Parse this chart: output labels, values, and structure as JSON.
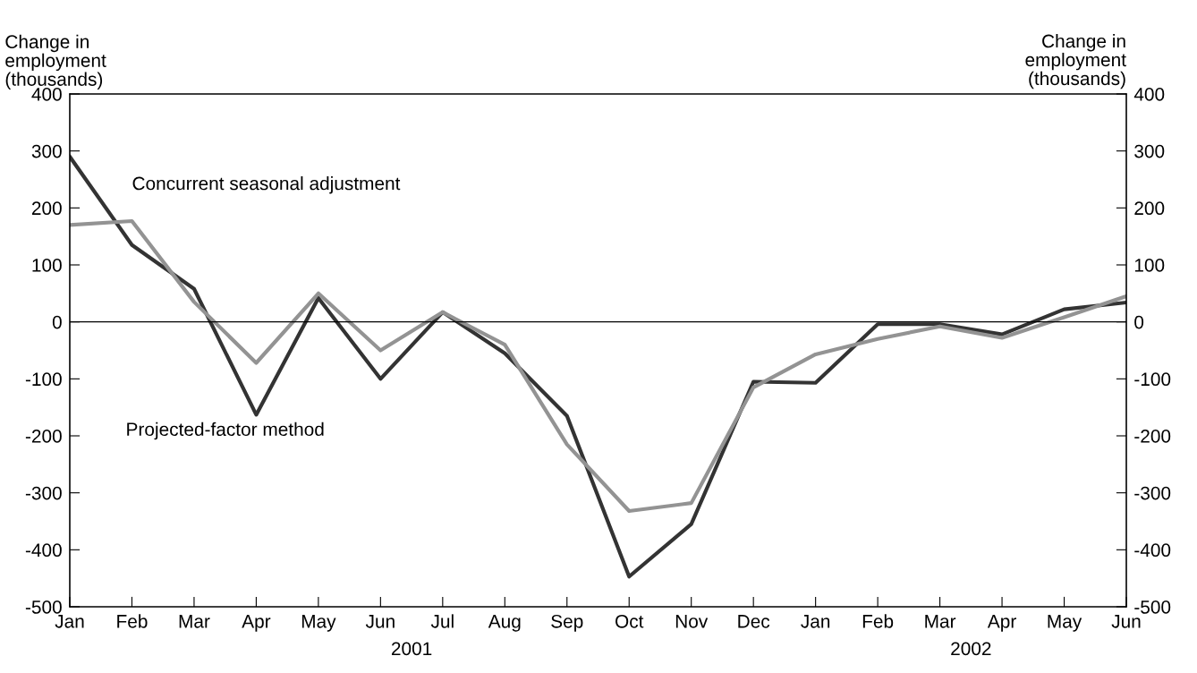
{
  "chart_data": {
    "type": "line",
    "ylabel": "Change in\nemployment\n(thousands)",
    "y2label": "Change in\nemployment\n(thousands)",
    "categories": [
      "Jan",
      "Feb",
      "Mar",
      "Apr",
      "May",
      "Jun",
      "Jul",
      "Aug",
      "Sep",
      "Oct",
      "Nov",
      "Dec",
      "Jan",
      "Feb",
      "Mar",
      "Apr",
      "May",
      "Jun"
    ],
    "series": [
      {
        "name": "Projected-factor method",
        "color": "#333333",
        "values": [
          290,
          135,
          58,
          -163,
          42,
          -100,
          17,
          -55,
          -165,
          -447,
          -355,
          -105,
          -107,
          -4,
          -4,
          -22,
          22,
          34
        ]
      },
      {
        "name": "Concurrent seasonal adjustment",
        "color": "#939393",
        "values": [
          170,
          177,
          35,
          -72,
          50,
          -50,
          17,
          -40,
          -215,
          -332,
          -318,
          -115,
          -57,
          -30,
          -8,
          -28,
          8,
          45
        ]
      }
    ],
    "ylim": [
      -500,
      400
    ],
    "yticks": [
      -500,
      -400,
      -300,
      -200,
      -100,
      0,
      100,
      200,
      300,
      400
    ],
    "y2lim": [
      -500,
      400
    ],
    "y2ticks": [
      -500,
      -400,
      -300,
      -200,
      -100,
      0,
      100,
      200,
      300,
      400
    ],
    "ref_lines": [
      {
        "axis": "y",
        "value": 0,
        "color": "#000000"
      }
    ],
    "annotations": [
      "2001",
      "2002"
    ],
    "grid": false,
    "legend": false,
    "marker": "none",
    "line_style": "solid"
  }
}
